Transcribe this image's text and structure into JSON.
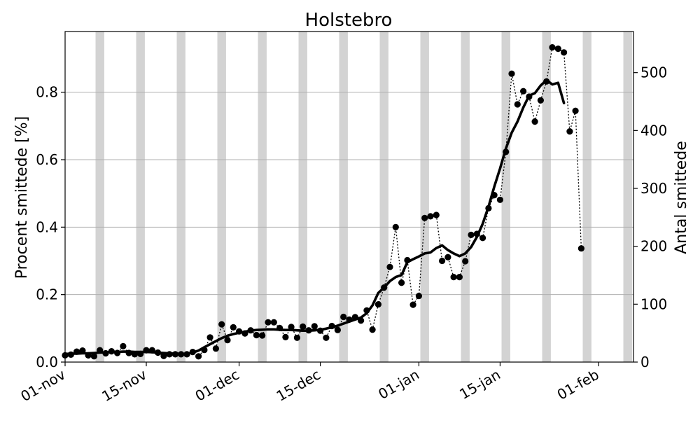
{
  "chart_data": {
    "type": "line",
    "title": "Holstebro",
    "ylabel_left": "Procent smittede [%]",
    "ylabel_right": "Antal smittede",
    "xlabel": "",
    "x_ticks": [
      "01-nov",
      "15-nov",
      "01-dec",
      "15-dec",
      "01-jan",
      "15-jan",
      "01-feb"
    ],
    "x_tick_days": [
      0,
      14,
      30,
      44,
      61,
      75,
      92
    ],
    "x_axis_note": "x values are day numbers counted from 01-nov",
    "x_range_days": [
      0,
      98
    ],
    "y_left_ticks": [
      "0.0",
      "0.2",
      "0.4",
      "0.6",
      "0.8"
    ],
    "y_left_range": [
      0,
      0.98
    ],
    "y_right_ticks": [
      "0",
      "100",
      "200",
      "300",
      "400",
      "500"
    ],
    "y_right_range": [
      0,
      571
    ],
    "grid": "horizontal",
    "weekend_bands_start_days": [
      5,
      12,
      19,
      26,
      33,
      40,
      47,
      54,
      61,
      68,
      75,
      82,
      89,
      96
    ],
    "series": [
      {
        "name": "",
        "style": "dotted-markers",
        "x": [
          0,
          1,
          2,
          3,
          4,
          5,
          6,
          7,
          8,
          9,
          10,
          11,
          12,
          13,
          14,
          15,
          16,
          17,
          18,
          19,
          20,
          21,
          22,
          23,
          24,
          25,
          26,
          27,
          28,
          29,
          30,
          31,
          32,
          33,
          34,
          35,
          36,
          37,
          38,
          39,
          40,
          41,
          42,
          43,
          44,
          45,
          46,
          47,
          48,
          49,
          50,
          51,
          52,
          53,
          54,
          55,
          56,
          57,
          58,
          59,
          60,
          61,
          62,
          63,
          64,
          65,
          66,
          67,
          68,
          69,
          70,
          71,
          72,
          73,
          74,
          75,
          76,
          77,
          78,
          79,
          80,
          81,
          82,
          83,
          84,
          85,
          86,
          87,
          88,
          89
        ],
        "y": [
          0.02,
          0.022,
          0.031,
          0.034,
          0.02,
          0.017,
          0.035,
          0.026,
          0.032,
          0.027,
          0.047,
          0.027,
          0.023,
          0.024,
          0.035,
          0.035,
          0.028,
          0.018,
          0.023,
          0.023,
          0.023,
          0.023,
          0.03,
          0.017,
          0.036,
          0.073,
          0.04,
          0.112,
          0.065,
          0.103,
          0.091,
          0.085,
          0.094,
          0.08,
          0.079,
          0.118,
          0.118,
          0.101,
          0.074,
          0.104,
          0.072,
          0.105,
          0.094,
          0.106,
          0.093,
          0.072,
          0.107,
          0.095,
          0.134,
          0.126,
          0.133,
          0.123,
          0.153,
          0.096,
          0.171,
          0.221,
          0.282,
          0.4,
          0.235,
          0.302,
          0.17,
          0.196,
          0.427,
          0.432,
          0.436,
          0.3,
          0.311,
          0.252,
          0.252,
          0.299,
          0.377,
          0.38,
          0.368,
          0.456,
          0.495,
          0.481,
          0.623,
          0.855,
          0.764,
          0.803,
          0.787,
          0.713,
          0.776,
          0.832,
          0.933,
          0.929,
          0.918,
          0.684,
          0.745,
          0.337
        ]
      },
      {
        "name": "",
        "style": "thick-line",
        "x": [
          0,
          1,
          2,
          3,
          4,
          5,
          6,
          7,
          8,
          9,
          10,
          11,
          12,
          13,
          14,
          15,
          16,
          17,
          18,
          19,
          20,
          21,
          22,
          23,
          24,
          25,
          26,
          27,
          28,
          29,
          30,
          31,
          32,
          33,
          34,
          35,
          36,
          37,
          38,
          39,
          40,
          41,
          42,
          43,
          44,
          45,
          46,
          47,
          48,
          49,
          50,
          51,
          52,
          53,
          54,
          55,
          56,
          57,
          58,
          59,
          60,
          61,
          62,
          63,
          64,
          65,
          66,
          67,
          68,
          69,
          70,
          71,
          72,
          73,
          74,
          75,
          76,
          77,
          78,
          79,
          80,
          81,
          82,
          83,
          84,
          85,
          86
        ],
        "y": [
          0.024,
          0.025,
          0.025,
          0.026,
          0.026,
          0.027,
          0.028,
          0.029,
          0.03,
          0.03,
          0.031,
          0.031,
          0.03,
          0.03,
          0.03,
          0.029,
          0.028,
          0.027,
          0.026,
          0.025,
          0.025,
          0.024,
          0.028,
          0.034,
          0.044,
          0.053,
          0.062,
          0.071,
          0.078,
          0.083,
          0.087,
          0.09,
          0.093,
          0.095,
          0.096,
          0.097,
          0.097,
          0.096,
          0.095,
          0.095,
          0.094,
          0.093,
          0.093,
          0.094,
          0.096,
          0.099,
          0.103,
          0.108,
          0.114,
          0.12,
          0.126,
          0.132,
          0.145,
          0.168,
          0.205,
          0.221,
          0.24,
          0.252,
          0.258,
          0.296,
          0.305,
          0.313,
          0.322,
          0.325,
          0.338,
          0.346,
          0.332,
          0.322,
          0.314,
          0.322,
          0.341,
          0.371,
          0.41,
          0.461,
          0.52,
          0.574,
          0.633,
          0.68,
          0.713,
          0.755,
          0.79,
          0.797,
          0.82,
          0.836,
          0.823,
          0.828,
          0.768
        ]
      }
    ]
  }
}
